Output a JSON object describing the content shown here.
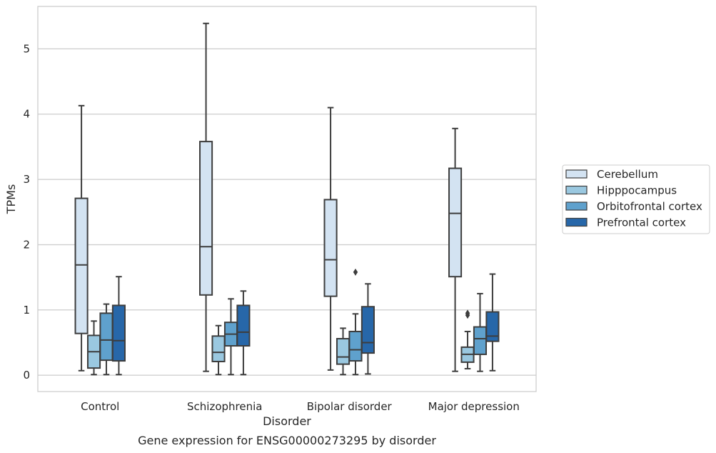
{
  "chart_data": {
    "type": "box",
    "title": "",
    "caption": "Gene expression for ENSG00000273295 by disorder",
    "xlabel": "Disorder",
    "ylabel": "TPMs",
    "ylim": [
      -0.25,
      5.65
    ],
    "yticks": [
      0,
      1,
      2,
      3,
      4,
      5
    ],
    "grid": true,
    "legend_position": "right",
    "categories": [
      "Control",
      "Schizophrenia",
      "Bipolar disorder",
      "Major depression"
    ],
    "series": [
      {
        "name": "Cerebellum",
        "color": "#d3e3f2",
        "boxes": [
          {
            "whislo": 0.07,
            "q1": 0.64,
            "med": 1.69,
            "q3": 2.71,
            "whishi": 4.13,
            "fliers": []
          },
          {
            "whislo": 0.06,
            "q1": 1.23,
            "med": 1.97,
            "q3": 3.58,
            "whishi": 5.39,
            "fliers": []
          },
          {
            "whislo": 0.08,
            "q1": 1.21,
            "med": 1.77,
            "q3": 2.69,
            "whishi": 4.1,
            "fliers": []
          },
          {
            "whislo": 0.06,
            "q1": 1.51,
            "med": 2.48,
            "q3": 3.17,
            "whishi": 3.78,
            "fliers": []
          }
        ]
      },
      {
        "name": "Hipppocampus",
        "color": "#9ac8e0",
        "boxes": [
          {
            "whislo": 0.01,
            "q1": 0.11,
            "med": 0.36,
            "q3": 0.61,
            "whishi": 0.83,
            "fliers": []
          },
          {
            "whislo": 0.01,
            "q1": 0.21,
            "med": 0.35,
            "q3": 0.6,
            "whishi": 0.76,
            "fliers": []
          },
          {
            "whislo": 0.01,
            "q1": 0.17,
            "med": 0.28,
            "q3": 0.56,
            "whishi": 0.72,
            "fliers": []
          },
          {
            "whislo": 0.1,
            "q1": 0.2,
            "med": 0.32,
            "q3": 0.43,
            "whishi": 0.67,
            "fliers": [
              0.92,
              0.95
            ]
          }
        ]
      },
      {
        "name": "Orbitofrontal cortex",
        "color": "#5fa1cd",
        "boxes": [
          {
            "whislo": 0.01,
            "q1": 0.23,
            "med": 0.54,
            "q3": 0.95,
            "whishi": 1.09,
            "fliers": []
          },
          {
            "whislo": 0.01,
            "q1": 0.45,
            "med": 0.63,
            "q3": 0.81,
            "whishi": 1.17,
            "fliers": []
          },
          {
            "whislo": 0.01,
            "q1": 0.22,
            "med": 0.39,
            "q3": 0.67,
            "whishi": 0.94,
            "fliers": [
              1.58
            ]
          },
          {
            "whislo": 0.06,
            "q1": 0.32,
            "med": 0.56,
            "q3": 0.74,
            "whishi": 1.25,
            "fliers": []
          }
        ]
      },
      {
        "name": "Prefrontal cortex",
        "color": "#2767a9",
        "boxes": [
          {
            "whislo": 0.01,
            "q1": 0.22,
            "med": 0.53,
            "q3": 1.07,
            "whishi": 1.51,
            "fliers": []
          },
          {
            "whislo": 0.01,
            "q1": 0.45,
            "med": 0.66,
            "q3": 1.07,
            "whishi": 1.29,
            "fliers": []
          },
          {
            "whislo": 0.02,
            "q1": 0.34,
            "med": 0.5,
            "q3": 1.05,
            "whishi": 1.4,
            "fliers": []
          },
          {
            "whislo": 0.07,
            "q1": 0.52,
            "med": 0.6,
            "q3": 0.97,
            "whishi": 1.55,
            "fliers": []
          }
        ]
      }
    ]
  }
}
